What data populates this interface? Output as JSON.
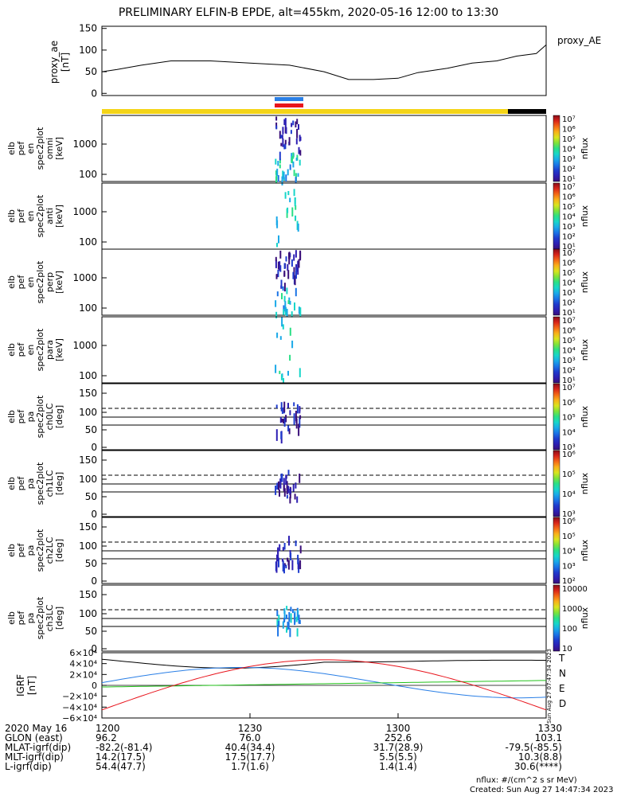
{
  "title": "PRELIMINARY ELFIN-B EPDE, alt=455km, 2020-05-16 12:00 to 13:30",
  "colors": {
    "bar_yellow": "#f4d417",
    "bar_black": "#000000",
    "blue": "#2a7fe6",
    "red": "#e8141c",
    "green": "#22c21a"
  },
  "chart_data": [
    {
      "type": "line",
      "name": "proxy_ae",
      "ylabel": [
        "proxy_ae",
        "[nT]"
      ],
      "legend": "proxy_AE",
      "ylim": [
        -5,
        155
      ],
      "yticks": [
        "150",
        "100",
        "50",
        "0"
      ],
      "x": [
        0,
        3,
        8,
        14,
        22,
        30,
        38,
        45,
        50,
        55,
        60,
        64,
        70,
        75,
        80,
        84,
        88,
        90
      ],
      "values": [
        50,
        55,
        65,
        75,
        75,
        70,
        65,
        50,
        32,
        32,
        35,
        48,
        58,
        70,
        75,
        86,
        92,
        112
      ]
    },
    {
      "type": "heatmap",
      "panels": [
        {
          "ylabel": [
            "elb",
            "pef",
            "en",
            "spec2plot",
            "omni",
            "[keV]"
          ],
          "yticks": [
            "1000",
            "100"
          ]
        },
        {
          "ylabel": [
            "elb",
            "pef",
            "en",
            "spec2plot",
            "anti",
            "[keV]"
          ],
          "yticks": [
            "1000",
            "100"
          ]
        },
        {
          "ylabel": [
            "elb",
            "pef",
            "en",
            "spec2plot",
            "perp",
            "[keV]"
          ],
          "yticks": [
            "1000",
            "100"
          ]
        },
        {
          "ylabel": [
            "elb",
            "pef",
            "en",
            "spec2plot",
            "para",
            "[keV]"
          ],
          "yticks": [
            "1000",
            "100"
          ]
        },
        {
          "ylabel": [
            "elb",
            "pef",
            "pa",
            "spec2plot",
            "ch0LC",
            "[deg]"
          ],
          "yticks": [
            "150",
            "100",
            "50",
            "0"
          ]
        },
        {
          "ylabel": [
            "elb",
            "pef",
            "pa",
            "spec2plot",
            "ch1LC",
            "[deg]"
          ],
          "yticks": [
            "150",
            "100",
            "50",
            "0"
          ]
        },
        {
          "ylabel": [
            "elb",
            "pef",
            "pa",
            "spec2plot",
            "ch2LC",
            "[deg]"
          ],
          "yticks": [
            "150",
            "100",
            "50",
            "0"
          ]
        },
        {
          "ylabel": [
            "elb",
            "pef",
            "pa",
            "spec2plot",
            "ch3LC",
            "[deg]"
          ],
          "yticks": [
            "150",
            "100",
            "50",
            "0"
          ]
        }
      ],
      "colorbars": [
        {
          "label": "nflux",
          "ticks": [
            "10⁷",
            "10⁶",
            "10⁵",
            "10⁴",
            "10³",
            "10²",
            "10¹"
          ]
        },
        {
          "label": "nflux",
          "ticks": [
            "10⁷",
            "10⁶",
            "10⁵",
            "10⁴",
            "10³",
            "10²",
            "10¹"
          ]
        },
        {
          "label": "nflux",
          "ticks": [
            "10⁷",
            "10⁶",
            "10⁵",
            "10⁴",
            "10³",
            "10²",
            "10¹"
          ]
        },
        {
          "label": "nflux",
          "ticks": [
            "10⁷",
            "10⁶",
            "10⁵",
            "10⁴",
            "10³",
            "10²",
            "10¹"
          ]
        },
        {
          "label": "nflux",
          "ticks": [
            "10⁷",
            "10⁶",
            "10⁵",
            "10⁴",
            "10³"
          ]
        },
        {
          "label": "nflux",
          "ticks": [
            "10⁶",
            "10⁵",
            "10⁴",
            "10³"
          ]
        },
        {
          "label": "nflux",
          "ticks": [
            "10⁶",
            "10⁵",
            "10⁴",
            "10³",
            "10²"
          ]
        },
        {
          "label": "nflux",
          "ticks": [
            "10000",
            "1000",
            "100",
            "10"
          ]
        }
      ]
    },
    {
      "type": "line",
      "name": "IGRF",
      "ylabel": [
        "IGRF",
        "[nT]"
      ],
      "yticks": [
        "6×10⁴",
        "4×10⁴",
        "2×10⁴",
        "0",
        "−2×10⁴",
        "−4×10⁴",
        "−6×10⁴"
      ],
      "ylim": [
        -60000,
        60000
      ],
      "legend": [
        "T",
        "N",
        "E",
        "D"
      ],
      "side_note": "Sun Aug 27 07:47:34 2023"
    }
  ],
  "xaxis": {
    "ticks": [
      "1200",
      "1230",
      "1300",
      "1330"
    ],
    "rows": [
      {
        "label": "2020 May 16",
        "values": [
          "1200",
          "1230",
          "1300",
          "1330"
        ]
      },
      {
        "label": "GLON (east)",
        "values": [
          "96.2",
          "76.0",
          "252.6",
          "103.1"
        ]
      },
      {
        "label": "MLAT-igrf(dip)",
        "values": [
          "-82.2(-81.4)",
          "40.4(34.4)",
          "31.7(28.9)",
          "-79.5(-85.5)"
        ]
      },
      {
        "label": "MLT-igrf(dip)",
        "values": [
          "14.2(17.5)",
          "17.5(17.7)",
          "5.5(5.5)",
          "10.3(8.8)"
        ]
      },
      {
        "label": "L-igrf(dip)",
        "values": [
          "54.4(47.7)",
          "1.7(1.6)",
          "1.4(1.4)",
          "30.6(****)"
        ]
      }
    ]
  },
  "footer": {
    "units": "nflux: #/(cm^2 s sr MeV)",
    "created": "Created: Sun Aug 27 14:47:34 2023"
  }
}
